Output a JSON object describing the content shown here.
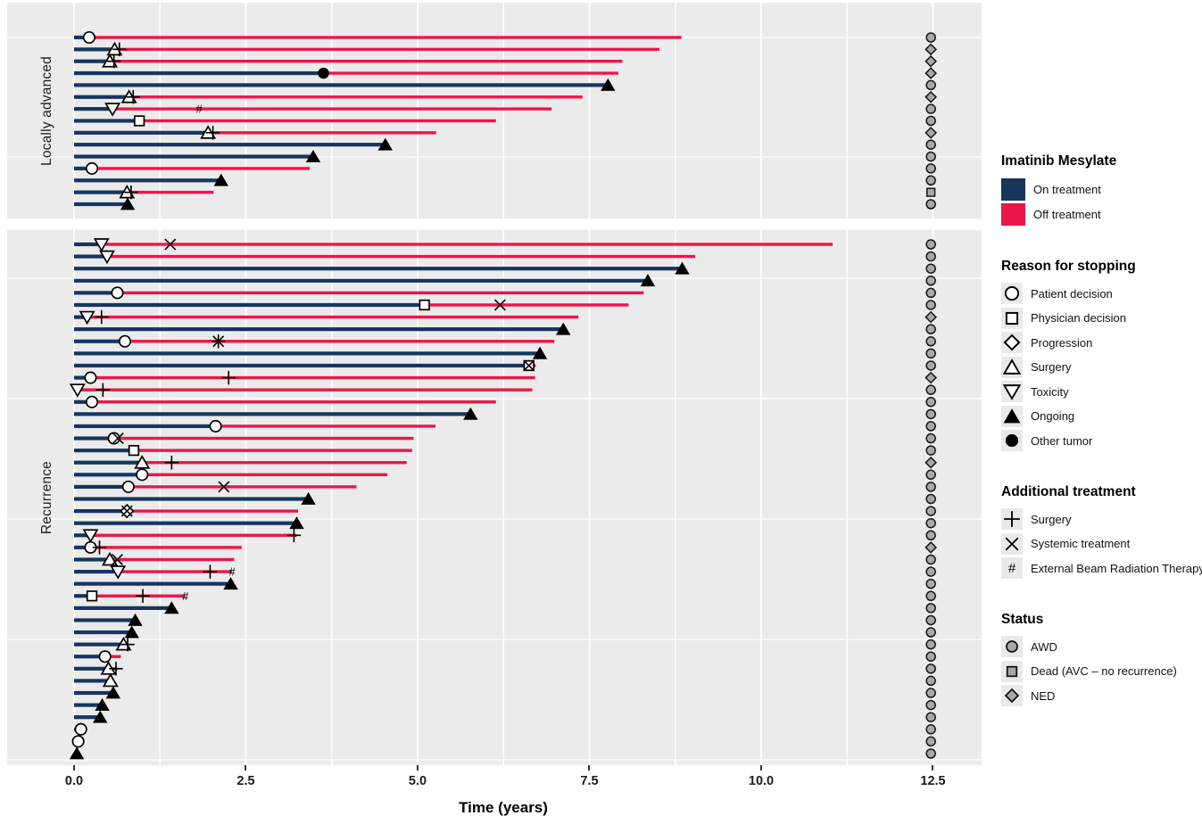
{
  "axis": {
    "title": "Time (years)",
    "ticks": [
      "0.0",
      "2.5",
      "5.0",
      "7.5",
      "10.0",
      "12.5"
    ],
    "tick_values": [
      0,
      2.5,
      5.0,
      7.5,
      10.0,
      12.5
    ],
    "minor_step": 1.25
  },
  "facets": [
    {
      "label": "Locally advanced"
    },
    {
      "label": "Recurrence"
    }
  ],
  "colors": {
    "on_treatment": "#17355e",
    "off_treatment": "#ee1549",
    "panel_bg": "#ebebeb",
    "grid": "#ffffff",
    "status_fill": "#a8a8a8",
    "marker_stroke": "#000000"
  },
  "legend": {
    "treatment": {
      "title": "Imatinib Mesylate",
      "items": [
        {
          "label": "On treatment"
        },
        {
          "label": "Off treatment"
        }
      ]
    },
    "reason": {
      "title": "Reason for stopping",
      "items": [
        {
          "label": "Patient decision",
          "symbol": "circle"
        },
        {
          "label": "Physician decision",
          "symbol": "square"
        },
        {
          "label": "Progression",
          "symbol": "diamond"
        },
        {
          "label": "Surgery",
          "symbol": "tri-up"
        },
        {
          "label": "Toxicity",
          "symbol": "tri-down"
        },
        {
          "label": "Ongoing",
          "symbol": "tri-filled"
        },
        {
          "label": "Other tumor",
          "symbol": "circle-filled"
        }
      ]
    },
    "additional": {
      "title": "Additional treatment",
      "items": [
        {
          "label": "Surgery",
          "symbol": "plus"
        },
        {
          "label": "Systemic treatment",
          "symbol": "x"
        },
        {
          "label": "External Beam Radiation Therapy",
          "symbol": "hash"
        }
      ]
    },
    "status": {
      "title": "Status",
      "items": [
        {
          "label": "AWD",
          "symbol": "s-circle"
        },
        {
          "label": "Dead (AVC – no recurrence)",
          "symbol": "s-square"
        },
        {
          "label": "NED",
          "symbol": "s-diamond"
        }
      ]
    }
  },
  "chart_data": {
    "type": "bar",
    "subtype": "swimmer-plot",
    "orientation": "horizontal",
    "xlabel": "Time (years)",
    "xlim": [
      0,
      13.2
    ],
    "x_ticks": [
      0,
      2.5,
      5.0,
      7.5,
      10.0,
      12.5
    ],
    "grid": "on",
    "legend_position": "right",
    "status_column_t": 12.47,
    "groups": [
      {
        "name": "Locally advanced",
        "patients": [
          {
            "on": 0.22,
            "end": 8.84,
            "status": "AWD",
            "markers": [
              [
                "circle",
                0.22
              ]
            ]
          },
          {
            "on": 0.59,
            "end": 8.52,
            "status": "NED",
            "markers": [
              [
                "tri-up",
                0.59
              ],
              [
                "plus",
                0.66
              ]
            ]
          },
          {
            "on": 0.52,
            "end": 7.98,
            "status": "NED",
            "markers": [
              [
                "tri-up",
                0.52
              ],
              [
                "plus",
                0.58
              ]
            ]
          },
          {
            "on": 3.63,
            "end": 7.92,
            "status": "NED",
            "markers": [
              [
                "circle-filled",
                3.63
              ]
            ]
          },
          {
            "on": 7.77,
            "end": 7.77,
            "status": "AWD",
            "markers": [
              [
                "tri-filled",
                7.77
              ]
            ]
          },
          {
            "on": 0.8,
            "end": 7.4,
            "status": "NED",
            "markers": [
              [
                "tri-up",
                0.8
              ],
              [
                "plus",
                0.86
              ]
            ]
          },
          {
            "on": 0.56,
            "end": 6.95,
            "status": "AWD",
            "markers": [
              [
                "tri-down",
                0.56
              ],
              [
                "hash",
                1.82
              ]
            ]
          },
          {
            "on": 0.95,
            "end": 6.14,
            "status": "AWD",
            "markers": [
              [
                "square",
                0.95
              ]
            ]
          },
          {
            "on": 1.95,
            "end": 5.27,
            "status": "NED",
            "markers": [
              [
                "tri-up",
                1.95
              ],
              [
                "plus",
                2.02
              ]
            ]
          },
          {
            "on": 4.53,
            "end": 4.53,
            "status": "AWD",
            "markers": [
              [
                "tri-filled",
                4.53
              ]
            ]
          },
          {
            "on": 3.48,
            "end": 3.48,
            "status": "AWD",
            "markers": [
              [
                "tri-filled",
                3.48
              ]
            ]
          },
          {
            "on": 0.26,
            "end": 3.43,
            "status": "AWD",
            "markers": [
              [
                "circle",
                0.26
              ]
            ]
          },
          {
            "on": 2.14,
            "end": 2.14,
            "status": "AWD",
            "markers": [
              [
                "tri-filled",
                2.14
              ]
            ]
          },
          {
            "on": 0.77,
            "end": 2.03,
            "status": "DEAD",
            "markers": [
              [
                "tri-up",
                0.77
              ],
              [
                "plus",
                0.83
              ]
            ]
          },
          {
            "on": 0.78,
            "end": 0.78,
            "status": "AWD",
            "markers": [
              [
                "tri-filled",
                0.78
              ]
            ]
          }
        ]
      },
      {
        "name": "Recurrence",
        "patients": [
          {
            "on": 0.4,
            "end": 11.04,
            "status": "AWD",
            "markers": [
              [
                "tri-down",
                0.4
              ],
              [
                "x",
                1.4
              ]
            ]
          },
          {
            "on": 0.48,
            "end": 9.04,
            "status": "AWD",
            "markers": [
              [
                "tri-down",
                0.48
              ]
            ]
          },
          {
            "on": 8.85,
            "end": 8.85,
            "status": "AWD",
            "markers": [
              [
                "tri-filled",
                8.85
              ]
            ]
          },
          {
            "on": 8.35,
            "end": 8.35,
            "status": "AWD",
            "markers": [
              [
                "tri-filled",
                8.35
              ]
            ]
          },
          {
            "on": 0.63,
            "end": 8.29,
            "status": "AWD",
            "markers": [
              [
                "circle",
                0.63
              ]
            ]
          },
          {
            "on": 5.1,
            "end": 8.07,
            "status": "AWD",
            "markers": [
              [
                "square",
                5.1
              ],
              [
                "x",
                6.2
              ]
            ]
          },
          {
            "on": 0.19,
            "end": 7.34,
            "status": "NED",
            "markers": [
              [
                "tri-down",
                0.19
              ],
              [
                "plus",
                0.4
              ]
            ]
          },
          {
            "on": 7.12,
            "end": 7.12,
            "status": "AWD",
            "markers": [
              [
                "tri-filled",
                7.12
              ]
            ]
          },
          {
            "on": 0.74,
            "end": 6.99,
            "status": "AWD",
            "markers": [
              [
                "circle",
                0.74
              ],
              [
                "plus",
                2.1
              ],
              [
                "x",
                2.1
              ]
            ]
          },
          {
            "on": 6.78,
            "end": 6.78,
            "status": "AWD",
            "markers": [
              [
                "tri-filled",
                6.78
              ]
            ]
          },
          {
            "on": 6.62,
            "end": 6.72,
            "status": "AWD",
            "markers": [
              [
                "square",
                6.62
              ],
              [
                "x",
                6.62
              ]
            ]
          },
          {
            "on": 0.24,
            "end": 6.71,
            "status": "NED",
            "markers": [
              [
                "circle",
                0.24
              ],
              [
                "plus",
                2.25
              ]
            ]
          },
          {
            "on": 0.05,
            "end": 6.67,
            "status": "AWD",
            "markers": [
              [
                "tri-down",
                0.05
              ],
              [
                "plus",
                0.42
              ]
            ]
          },
          {
            "on": 0.26,
            "end": 6.14,
            "status": "AWD",
            "markers": [
              [
                "circle",
                0.26
              ]
            ]
          },
          {
            "on": 5.77,
            "end": 5.77,
            "status": "AWD",
            "markers": [
              [
                "tri-filled",
                5.77
              ]
            ]
          },
          {
            "on": 2.06,
            "end": 5.26,
            "status": "AWD",
            "markers": [
              [
                "circle",
                2.06
              ]
            ]
          },
          {
            "on": 0.58,
            "end": 4.94,
            "status": "AWD",
            "markers": [
              [
                "circle",
                0.58
              ],
              [
                "x",
                0.64
              ]
            ]
          },
          {
            "on": 0.87,
            "end": 4.92,
            "status": "AWD",
            "markers": [
              [
                "square",
                0.87
              ]
            ]
          },
          {
            "on": 0.99,
            "end": 4.84,
            "status": "NED",
            "markers": [
              [
                "tri-up",
                0.99
              ],
              [
                "plus",
                1.42
              ]
            ]
          },
          {
            "on": 0.99,
            "end": 4.56,
            "status": "AWD",
            "markers": [
              [
                "circle",
                0.99
              ]
            ]
          },
          {
            "on": 0.79,
            "end": 4.11,
            "status": "AWD",
            "markers": [
              [
                "circle",
                0.79
              ],
              [
                "x",
                2.18
              ]
            ]
          },
          {
            "on": 3.41,
            "end": 3.41,
            "status": "AWD",
            "markers": [
              [
                "tri-filled",
                3.41
              ]
            ]
          },
          {
            "on": 0.77,
            "end": 3.26,
            "status": "AWD",
            "markers": [
              [
                "diamond",
                0.77
              ],
              [
                "x",
                0.77
              ]
            ]
          },
          {
            "on": 3.24,
            "end": 3.24,
            "status": "AWD",
            "markers": [
              [
                "tri-filled",
                3.24
              ]
            ]
          },
          {
            "on": 0.24,
            "end": 3.24,
            "status": "AWD",
            "markers": [
              [
                "tri-down",
                0.24
              ],
              [
                "plus",
                3.2
              ]
            ]
          },
          {
            "on": 0.24,
            "end": 2.44,
            "status": "NED",
            "markers": [
              [
                "circle",
                0.24
              ],
              [
                "plus",
                0.37
              ]
            ]
          },
          {
            "on": 0.52,
            "end": 2.33,
            "status": "AWD",
            "markers": [
              [
                "tri-up",
                0.52
              ],
              [
                "x",
                0.63
              ]
            ]
          },
          {
            "on": 0.64,
            "end": 2.3,
            "status": "AWD",
            "markers": [
              [
                "tri-down",
                0.64
              ],
              [
                "plus",
                1.98
              ],
              [
                "hash",
                2.3
              ]
            ]
          },
          {
            "on": 2.28,
            "end": 2.28,
            "status": "AWD",
            "markers": [
              [
                "tri-filled",
                2.28
              ]
            ]
          },
          {
            "on": 0.26,
            "end": 1.62,
            "status": "AWD",
            "markers": [
              [
                "square",
                0.26
              ],
              [
                "plus",
                1.0
              ],
              [
                "hash",
                1.62
              ]
            ]
          },
          {
            "on": 1.42,
            "end": 1.42,
            "status": "AWD",
            "markers": [
              [
                "tri-filled",
                1.42
              ]
            ]
          },
          {
            "on": 0.89,
            "end": 0.89,
            "status": "AWD",
            "markers": [
              [
                "tri-filled",
                0.89
              ]
            ]
          },
          {
            "on": 0.84,
            "end": 0.84,
            "status": "AWD",
            "markers": [
              [
                "tri-filled",
                0.84
              ]
            ]
          },
          {
            "on": 0.72,
            "end": 0.72,
            "status": "AWD",
            "markers": [
              [
                "tri-up",
                0.72
              ],
              [
                "plus",
                0.78
              ]
            ]
          },
          {
            "on": 0.45,
            "end": 0.68,
            "status": "AWD",
            "markers": [
              [
                "circle",
                0.45
              ]
            ]
          },
          {
            "on": 0.5,
            "end": 0.63,
            "status": "AWD",
            "markers": [
              [
                "tri-up",
                0.5
              ],
              [
                "plus",
                0.61
              ]
            ]
          },
          {
            "on": 0.53,
            "end": 0.53,
            "status": "AWD",
            "markers": [
              [
                "tri-up",
                0.53
              ]
            ]
          },
          {
            "on": 0.57,
            "end": 0.57,
            "status": "AWD",
            "markers": [
              [
                "tri-filled",
                0.57
              ]
            ]
          },
          {
            "on": 0.41,
            "end": 0.41,
            "status": "AWD",
            "markers": [
              [
                "tri-filled",
                0.41
              ]
            ]
          },
          {
            "on": 0.38,
            "end": 0.38,
            "status": "AWD",
            "markers": [
              [
                "tri-filled",
                0.38
              ]
            ]
          },
          {
            "on": 0.1,
            "end": 0.1,
            "status": "AWD",
            "markers": [
              [
                "circle",
                0.1
              ]
            ]
          },
          {
            "on": 0.06,
            "end": 0.06,
            "status": "AWD",
            "markers": [
              [
                "circle",
                0.06
              ]
            ]
          },
          {
            "on": 0.04,
            "end": 0.04,
            "status": "AWD",
            "markers": [
              [
                "tri-filled",
                0.04
              ]
            ]
          }
        ]
      }
    ]
  }
}
